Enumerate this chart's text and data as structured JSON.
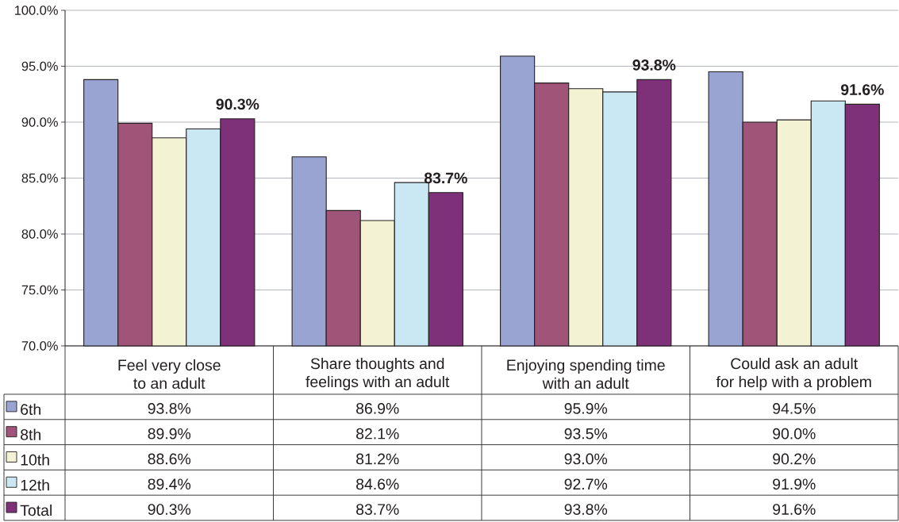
{
  "chart_data": {
    "type": "bar",
    "categories": [
      "Feel very close\nto an adult",
      "Share thoughts and\nfeelings with an adult",
      "Enjoying spending time\nwith an adult",
      "Could ask an adult\nfor help with a problem"
    ],
    "series": [
      {
        "name": "6th",
        "color": "#99a4d2",
        "values": [
          93.8,
          86.9,
          95.9,
          94.5
        ],
        "value_labels": [
          "93.8%",
          "86.9%",
          "95.9%",
          "94.5%"
        ]
      },
      {
        "name": "8th",
        "color": "#a05578",
        "values": [
          89.9,
          82.1,
          93.5,
          90.0
        ],
        "value_labels": [
          "89.9%",
          "82.1%",
          "93.5%",
          "90.0%"
        ]
      },
      {
        "name": "10th",
        "color": "#f3f2d2",
        "values": [
          88.6,
          81.2,
          93.0,
          90.2
        ],
        "value_labels": [
          "88.6%",
          "81.2%",
          "93.0%",
          "90.2%"
        ]
      },
      {
        "name": "12th",
        "color": "#cae8f3",
        "values": [
          89.4,
          84.6,
          92.7,
          91.9
        ],
        "value_labels": [
          "89.4%",
          "84.6%",
          "92.7%",
          "91.9%"
        ]
      },
      {
        "name": "Total",
        "color": "#7e3079",
        "values": [
          90.3,
          83.7,
          93.8,
          91.6
        ],
        "value_labels": [
          "90.3%",
          "83.7%",
          "93.8%",
          "91.6%"
        ],
        "data_labels": true
      }
    ],
    "ylim": [
      70,
      100
    ],
    "yticks": [
      {
        "value": 70,
        "label": "70.0%"
      },
      {
        "value": 75,
        "label": "75.0%"
      },
      {
        "value": 80,
        "label": "80.0%"
      },
      {
        "value": 85,
        "label": "85.0%"
      },
      {
        "value": 90,
        "label": "90.0%"
      },
      {
        "value": 95,
        "label": "95.0%"
      },
      {
        "value": 100,
        "label": "100.0%"
      }
    ],
    "grid": "y",
    "legend": "bottom left"
  }
}
